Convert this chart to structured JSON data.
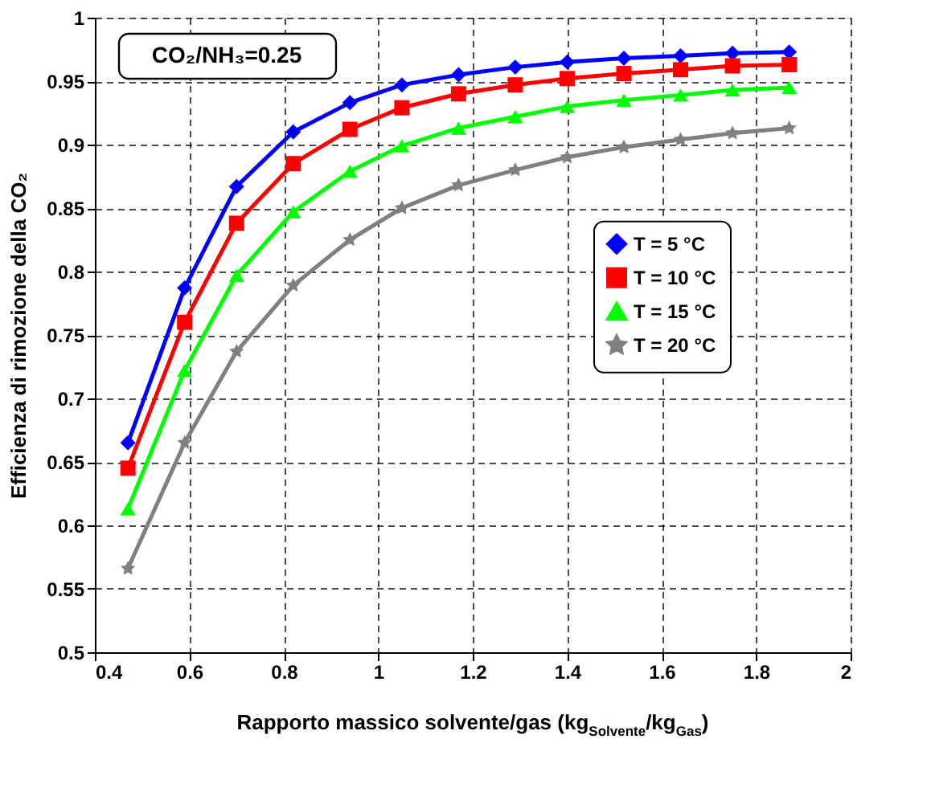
{
  "chart_data": {
    "type": "line",
    "xlabel": "Rapporto massico solvente/gas (kg$_{Solvente}$/kg$_{Gas}$)",
    "ylabel": "Efficienza di rimozione della CO₂",
    "annotations": [
      "CO₂/NH₃=0.25"
    ],
    "x": [
      0.47,
      0.59,
      0.7,
      0.82,
      0.94,
      1.05,
      1.17,
      1.29,
      1.4,
      1.52,
      1.64,
      1.75,
      1.87
    ],
    "series": [
      {
        "name": "T = 5 °C",
        "color": "#0000ff",
        "marker": "diamond",
        "values": [
          0.665,
          0.787,
          0.867,
          0.91,
          0.933,
          0.947,
          0.955,
          0.961,
          0.965,
          0.968,
          0.97,
          0.972,
          0.973
        ]
      },
      {
        "name": "T = 10 °C",
        "color": "#ff0000",
        "marker": "square",
        "values": [
          0.645,
          0.76,
          0.838,
          0.885,
          0.912,
          0.929,
          0.94,
          0.947,
          0.952,
          0.956,
          0.959,
          0.962,
          0.963
        ]
      },
      {
        "name": "T = 15 °C",
        "color": "#00ff00",
        "marker": "triangle",
        "values": [
          0.613,
          0.722,
          0.797,
          0.847,
          0.879,
          0.899,
          0.913,
          0.922,
          0.93,
          0.935,
          0.939,
          0.943,
          0.945
        ]
      },
      {
        "name": "T = 20 °C",
        "color": "#808080",
        "marker": "star",
        "values": [
          0.566,
          0.665,
          0.737,
          0.789,
          0.825,
          0.85,
          0.868,
          0.88,
          0.89,
          0.898,
          0.904,
          0.909,
          0.913
        ]
      }
    ],
    "xlim": [
      0.4,
      2
    ],
    "xticks": [
      0.4,
      0.6,
      0.8,
      1,
      1.2,
      1.4,
      1.6,
      1.8,
      2
    ],
    "ylim": [
      0.5,
      1
    ],
    "yticks": [
      0.5,
      0.55,
      0.6,
      0.65,
      0.7,
      0.75,
      0.8,
      0.85,
      0.9,
      0.95,
      1
    ],
    "grid": true,
    "legend": "right",
    "line_style": "solid"
  }
}
